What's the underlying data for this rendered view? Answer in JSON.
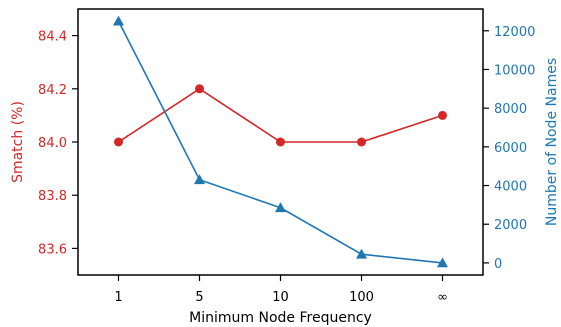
{
  "chart_data": {
    "type": "line",
    "categories": [
      "1",
      "5",
      "10",
      "100",
      "∞"
    ],
    "xlabel": "Minimum Node Frequency",
    "series": [
      {
        "name": "Smatch (%)",
        "axis": "left",
        "color": "#d62728",
        "marker": "circle",
        "values": [
          84.0,
          84.2,
          84.0,
          84.0,
          84.1
        ]
      },
      {
        "name": "Number of Node Names",
        "axis": "right",
        "color": "#1f77b4",
        "marker": "triangle",
        "values": [
          12500,
          4300,
          2850,
          450,
          0
        ]
      }
    ],
    "y_left": {
      "label": "Smatch (%)",
      "color": "#d62728",
      "range": [
        83.5,
        84.5
      ],
      "ticks": [
        83.6,
        83.8,
        84.0,
        84.2,
        84.4
      ],
      "tick_labels": [
        "83.6",
        "83.8",
        "84.0",
        "84.2",
        "84.4"
      ]
    },
    "y_right": {
      "label": "Number of Node Names",
      "color": "#1f77b4",
      "range": [
        -625,
        13125
      ],
      "ticks": [
        0,
        2000,
        4000,
        6000,
        8000,
        10000,
        12000
      ],
      "tick_labels": [
        "0",
        "2000",
        "4000",
        "6000",
        "8000",
        "10000",
        "12000"
      ]
    },
    "grid": false,
    "legend": "none"
  }
}
